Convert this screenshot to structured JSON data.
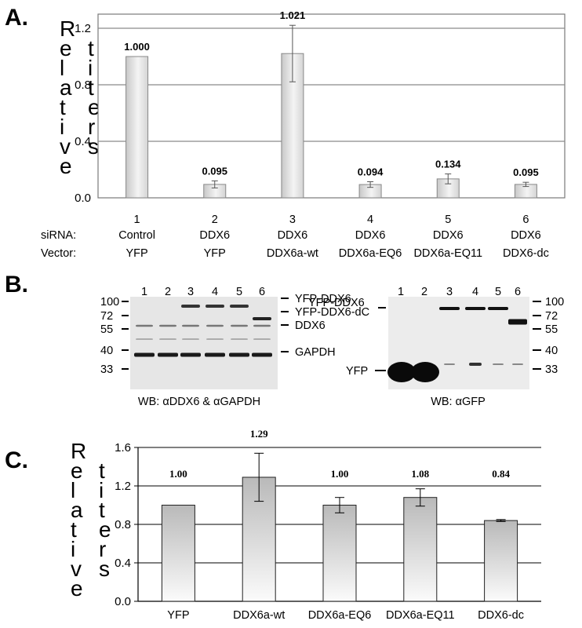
{
  "panels": {
    "A": {
      "letter": "A.",
      "ylabel": "Relative titers"
    },
    "B": {
      "letter": "B."
    },
    "C": {
      "letter": "C.",
      "ylabel": "Relative titers"
    }
  },
  "chart_data": [
    {
      "panel": "A",
      "type": "bar",
      "categories": [
        "1",
        "2",
        "3",
        "4",
        "5",
        "6"
      ],
      "values": [
        1.0,
        0.095,
        1.021,
        0.094,
        0.134,
        0.095
      ],
      "errors": [
        0.0,
        0.025,
        0.2,
        0.02,
        0.035,
        0.015
      ],
      "value_labels": [
        "1.000",
        "0.095",
        "1.021",
        "0.094",
        "0.134",
        "0.095"
      ],
      "ylabel": "Relative titers",
      "ylim": [
        0,
        1.2
      ],
      "yticks": [
        "0.0",
        "0.4",
        "0.8",
        "1.2"
      ],
      "row_labels": [
        "siRNA:",
        "Vector:"
      ],
      "siRNA": [
        "Control",
        "DDX6",
        "DDX6",
        "DDX6",
        "DDX6",
        "DDX6"
      ],
      "vector": [
        "YFP",
        "YFP",
        "DDX6a-wt",
        "DDX6a-EQ6",
        "DDX6a-EQ11",
        "DDX6-dc"
      ],
      "grid": true
    },
    {
      "panel": "C",
      "type": "bar",
      "categories": [
        "YFP",
        "DDX6a-wt",
        "DDX6a-EQ6",
        "DDX6a-EQ11",
        "DDX6-dc"
      ],
      "values": [
        1.0,
        1.29,
        1.0,
        1.08,
        0.84
      ],
      "errors": [
        0.0,
        0.25,
        0.08,
        0.09,
        0.01
      ],
      "value_labels": [
        "1.00",
        "1.29",
        "1.00",
        "1.08",
        "0.84"
      ],
      "ylabel": "Relative titers",
      "ylim": [
        0,
        1.6
      ],
      "yticks": [
        "0.0",
        "0.4",
        "0.8",
        "1.2",
        "1.6"
      ],
      "grid": true
    }
  ],
  "blots": {
    "left": {
      "lanes": [
        "1",
        "2",
        "3",
        "4",
        "5",
        "6"
      ],
      "mw_markers": [
        "100",
        "72",
        "55",
        "40",
        "33"
      ],
      "band_labels": [
        "YFP-DDX6",
        "YFP-DDX6-dC",
        "DDX6",
        "GAPDH"
      ],
      "caption": "WB: αDDX6 & αGAPDH"
    },
    "right": {
      "lanes": [
        "1",
        "2",
        "3",
        "4",
        "5",
        "6"
      ],
      "mw_markers": [
        "100",
        "72",
        "55",
        "40",
        "33"
      ],
      "band_labels": [
        "YFP-DDX6",
        "YFP"
      ],
      "caption": "WB: αGFP"
    }
  }
}
